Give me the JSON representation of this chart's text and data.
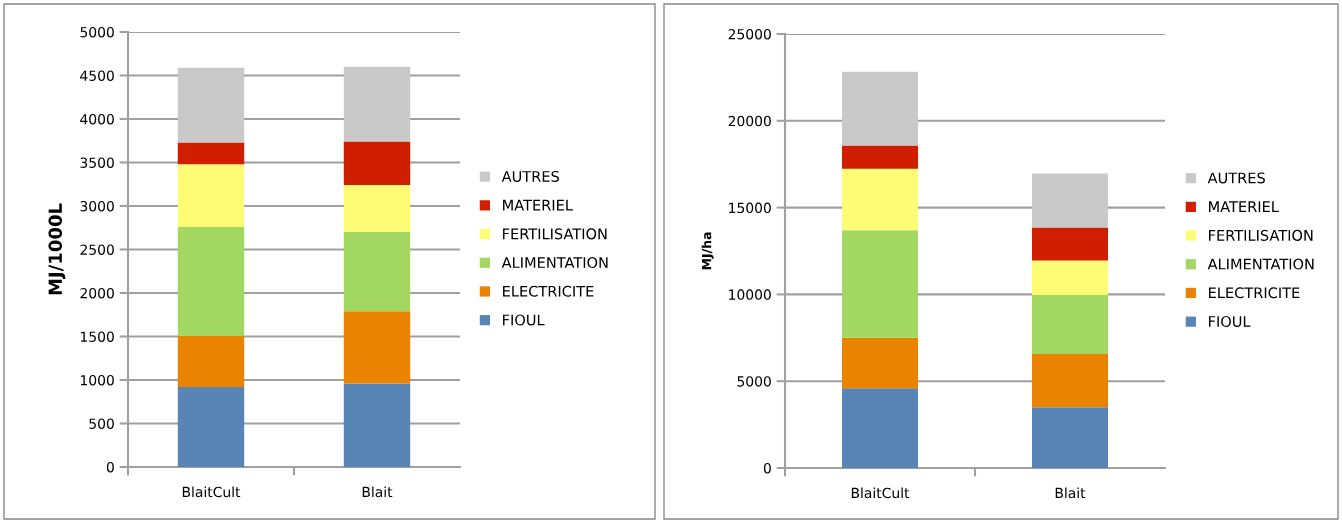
{
  "chart_data": [
    {
      "type": "bar",
      "stacked": true,
      "ylabel": "MJ/1000L",
      "categories": [
        "BlaitCult",
        "Blait"
      ],
      "ylim": [
        0,
        5000
      ],
      "yticks": [
        0,
        500,
        1000,
        1500,
        2000,
        2500,
        3000,
        3500,
        4000,
        4500,
        5000
      ],
      "grid": "y",
      "legend": "right",
      "series": [
        {
          "name": "FIOUL",
          "color": "#5985b6",
          "values": [
            920,
            960
          ]
        },
        {
          "name": "ELECTRICITE",
          "color": "#e98300",
          "values": [
            590,
            830
          ]
        },
        {
          "name": "ALIMENTATION",
          "color": "#a2d762",
          "values": [
            1250,
            910
          ]
        },
        {
          "name": "FERTILISATION",
          "color": "#fefb75",
          "values": [
            720,
            540
          ]
        },
        {
          "name": "MATERIEL",
          "color": "#d01f00",
          "values": [
            250,
            500
          ]
        },
        {
          "name": "AUTRES",
          "color": "#c9c9c9",
          "values": [
            860,
            860
          ]
        }
      ]
    },
    {
      "type": "bar",
      "stacked": true,
      "ylabel": "MJ/ha",
      "categories": [
        "BlaitCult",
        "Blait"
      ],
      "ylim": [
        0,
        25000
      ],
      "yticks": [
        0,
        5000,
        10000,
        15000,
        20000,
        25000
      ],
      "grid": "y",
      "legend": "right",
      "series": [
        {
          "name": "FIOUL",
          "color": "#5985b6",
          "values": [
            4600,
            3500
          ]
        },
        {
          "name": "ELECTRICITE",
          "color": "#e98300",
          "values": [
            2900,
            3070
          ]
        },
        {
          "name": "ALIMENTATION",
          "color": "#a2d762",
          "values": [
            6200,
            3400
          ]
        },
        {
          "name": "FERTILISATION",
          "color": "#fefb75",
          "values": [
            3540,
            1980
          ]
        },
        {
          "name": "MATERIEL",
          "color": "#d01f00",
          "values": [
            1340,
            1900
          ]
        },
        {
          "name": "AUTRES",
          "color": "#c9c9c9",
          "values": [
            4250,
            3110
          ]
        }
      ]
    }
  ]
}
